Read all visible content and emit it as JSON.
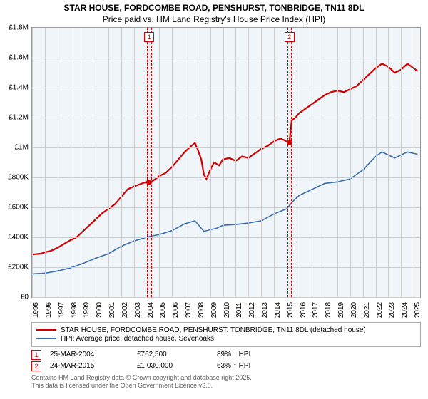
{
  "title_line1": "STAR HOUSE, FORDCOMBE ROAD, PENSHURST, TONBRIDGE, TN11 8DL",
  "title_line2": "Price paid vs. HM Land Registry's House Price Index (HPI)",
  "chart": {
    "type": "line",
    "background_color": "#f0f5fa",
    "grid_color": "#cccccc",
    "border_color": "#999999",
    "xlim": [
      1995,
      2025.5
    ],
    "ylim": [
      0,
      1800000
    ],
    "y_ticks": [
      {
        "v": 0,
        "label": "£0"
      },
      {
        "v": 200000,
        "label": "£200K"
      },
      {
        "v": 400000,
        "label": "£400K"
      },
      {
        "v": 600000,
        "label": "£600K"
      },
      {
        "v": 800000,
        "label": "£800K"
      },
      {
        "v": 1000000,
        "label": "£1M"
      },
      {
        "v": 1200000,
        "label": "£1.2M"
      },
      {
        "v": 1400000,
        "label": "£1.4M"
      },
      {
        "v": 1600000,
        "label": "£1.6M"
      },
      {
        "v": 1800000,
        "label": "£1.8M"
      }
    ],
    "x_ticks": [
      1995,
      1996,
      1997,
      1998,
      1999,
      2000,
      2001,
      2002,
      2003,
      2004,
      2005,
      2006,
      2007,
      2008,
      2009,
      2010,
      2011,
      2012,
      2013,
      2014,
      2015,
      2016,
      2017,
      2018,
      2019,
      2020,
      2021,
      2022,
      2023,
      2024,
      2025
    ],
    "tick_fontsize": 10,
    "series": [
      {
        "name": "property",
        "color": "#d40000",
        "width": 2.2,
        "legend": "STAR HOUSE, FORDCOMBE ROAD, PENSHURST, TONBRIDGE, TN11 8DL (detached house)",
        "data": [
          [
            1995,
            285000
          ],
          [
            1995.3,
            287000
          ],
          [
            1995.7,
            291000
          ],
          [
            1996,
            300000
          ],
          [
            1996.5,
            310000
          ],
          [
            1997,
            330000
          ],
          [
            1997.5,
            355000
          ],
          [
            1998,
            380000
          ],
          [
            1998.5,
            400000
          ],
          [
            1999,
            440000
          ],
          [
            1999.5,
            480000
          ],
          [
            2000,
            520000
          ],
          [
            2000.5,
            560000
          ],
          [
            2001,
            590000
          ],
          [
            2001.5,
            620000
          ],
          [
            2002,
            670000
          ],
          [
            2002.5,
            720000
          ],
          [
            2003,
            740000
          ],
          [
            2003.5,
            755000
          ],
          [
            2004,
            770000
          ],
          [
            2004.22,
            762500
          ],
          [
            2004.7,
            790000
          ],
          [
            2005,
            810000
          ],
          [
            2005.5,
            830000
          ],
          [
            2006,
            870000
          ],
          [
            2006.5,
            920000
          ],
          [
            2007,
            970000
          ],
          [
            2007.5,
            1010000
          ],
          [
            2007.8,
            1030000
          ],
          [
            2008,
            990000
          ],
          [
            2008.3,
            920000
          ],
          [
            2008.5,
            820000
          ],
          [
            2008.7,
            790000
          ],
          [
            2009,
            850000
          ],
          [
            2009.3,
            900000
          ],
          [
            2009.5,
            890000
          ],
          [
            2009.7,
            880000
          ],
          [
            2010,
            920000
          ],
          [
            2010.5,
            930000
          ],
          [
            2011,
            910000
          ],
          [
            2011.5,
            940000
          ],
          [
            2012,
            930000
          ],
          [
            2012.5,
            960000
          ],
          [
            2013,
            990000
          ],
          [
            2013.5,
            1010000
          ],
          [
            2014,
            1040000
          ],
          [
            2014.5,
            1060000
          ],
          [
            2014.8,
            1050000
          ],
          [
            2015,
            1040000
          ],
          [
            2015.22,
            1030000
          ],
          [
            2015.4,
            1180000
          ],
          [
            2015.7,
            1200000
          ],
          [
            2016,
            1230000
          ],
          [
            2016.5,
            1260000
          ],
          [
            2017,
            1290000
          ],
          [
            2017.5,
            1320000
          ],
          [
            2018,
            1350000
          ],
          [
            2018.5,
            1370000
          ],
          [
            2019,
            1380000
          ],
          [
            2019.5,
            1370000
          ],
          [
            2020,
            1390000
          ],
          [
            2020.5,
            1410000
          ],
          [
            2021,
            1450000
          ],
          [
            2021.5,
            1490000
          ],
          [
            2022,
            1530000
          ],
          [
            2022.5,
            1560000
          ],
          [
            2023,
            1540000
          ],
          [
            2023.5,
            1500000
          ],
          [
            2024,
            1520000
          ],
          [
            2024.5,
            1560000
          ],
          [
            2025,
            1530000
          ],
          [
            2025.3,
            1510000
          ]
        ]
      },
      {
        "name": "hpi",
        "color": "#3a6fb0",
        "width": 1.6,
        "legend": "HPI: Average price, detached house, Sevenoaks",
        "data": [
          [
            1995,
            155000
          ],
          [
            1996,
            160000
          ],
          [
            1997,
            175000
          ],
          [
            1998,
            195000
          ],
          [
            1999,
            225000
          ],
          [
            2000,
            260000
          ],
          [
            2001,
            290000
          ],
          [
            2002,
            340000
          ],
          [
            2003,
            375000
          ],
          [
            2004,
            400000
          ],
          [
            2004.5,
            410000
          ],
          [
            2005,
            418000
          ],
          [
            2006,
            445000
          ],
          [
            2007,
            490000
          ],
          [
            2007.8,
            510000
          ],
          [
            2008,
            490000
          ],
          [
            2008.5,
            440000
          ],
          [
            2009,
            450000
          ],
          [
            2009.5,
            460000
          ],
          [
            2010,
            480000
          ],
          [
            2011,
            485000
          ],
          [
            2012,
            495000
          ],
          [
            2013,
            510000
          ],
          [
            2014,
            555000
          ],
          [
            2015,
            590000
          ],
          [
            2015.5,
            640000
          ],
          [
            2016,
            680000
          ],
          [
            2017,
            720000
          ],
          [
            2018,
            760000
          ],
          [
            2019,
            770000
          ],
          [
            2020,
            790000
          ],
          [
            2021,
            850000
          ],
          [
            2022,
            940000
          ],
          [
            2022.5,
            970000
          ],
          [
            2023,
            950000
          ],
          [
            2023.5,
            930000
          ],
          [
            2024,
            950000
          ],
          [
            2024.5,
            970000
          ],
          [
            2025,
            960000
          ],
          [
            2025.3,
            955000
          ]
        ]
      }
    ],
    "events": [
      {
        "num": "1",
        "x": 2004.22,
        "band_width_years": 0.35,
        "point_y": 762500,
        "point_color": "#d40000"
      },
      {
        "num": "2",
        "x": 2015.22,
        "band_width_years": 0.35,
        "point_y": 1030000,
        "point_color": "#d40000"
      }
    ]
  },
  "legend": {
    "border_color": "#aaaaaa"
  },
  "data_rows": [
    {
      "num": "1",
      "date": "25-MAR-2004",
      "price": "£762,500",
      "pct": "89% ↑ HPI"
    },
    {
      "num": "2",
      "date": "24-MAR-2015",
      "price": "£1,030,000",
      "pct": "63% ↑ HPI"
    }
  ],
  "footer_line1": "Contains HM Land Registry data © Crown copyright and database right 2025.",
  "footer_line2": "This data is licensed under the Open Government Licence v3.0."
}
